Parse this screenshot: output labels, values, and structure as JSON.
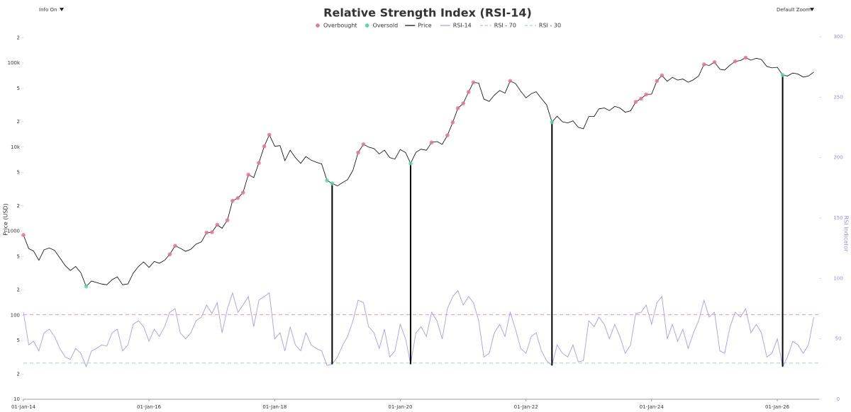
{
  "controls": {
    "left": "Info On",
    "right": "Default Zoom"
  },
  "chart_data": {
    "type": "line",
    "title": "Relative Strength Index (RSI-14)",
    "y_label": "Price (USD)",
    "y2_label": "RSI Indicator",
    "legend": "top",
    "log_y": true,
    "xlim": [
      "2014-01-01",
      "2026-09-01"
    ],
    "xticks": [
      {
        "value": "2014-01-01",
        "label": "01-Jan-14"
      },
      {
        "value": "2016-01-01",
        "label": "01-Jan-16"
      },
      {
        "value": "2018-01-01",
        "label": "01-Jan-18"
      },
      {
        "value": "2020-01-01",
        "label": "01-Jan-20"
      },
      {
        "value": "2022-01-01",
        "label": "01-Jan-22"
      },
      {
        "value": "2024-01-01",
        "label": "01-Jan-24"
      },
      {
        "value": "2026-01-01",
        "label": "01-Jan-26"
      }
    ],
    "ylim": [
      10,
      205000
    ],
    "yticks": [
      10,
      {
        "value": 20,
        "label": "2"
      },
      {
        "value": 50,
        "label": "5"
      },
      100,
      {
        "value": 200,
        "label": "2"
      },
      {
        "value": 500,
        "label": "5"
      },
      1000,
      {
        "value": 2000,
        "label": "2"
      },
      {
        "value": 5000,
        "label": "5"
      },
      {
        "value": 10000,
        "label": "10k"
      },
      {
        "value": 20000,
        "label": "2"
      },
      {
        "value": 50000,
        "label": "5"
      },
      {
        "value": 100000,
        "label": "100k"
      },
      {
        "value": 200000,
        "label": "2"
      }
    ],
    "y2lim": [
      0,
      300
    ],
    "y2ticks": [
      0,
      50,
      100,
      150,
      200,
      250,
      300
    ],
    "signals": [
      {
        "name": "Overbought",
        "color": "#e0789c"
      },
      {
        "name": "Oversold",
        "color": "#5fd6a9"
      }
    ],
    "thresholds": [
      {
        "name": "RSI - 70",
        "value": 70,
        "color": "#f2a6bf"
      },
      {
        "name": "RSI - 30",
        "value": 30,
        "color": "#a6dcc6"
      }
    ],
    "drop_lines": [
      "2018-12-01",
      "2020-03-01",
      "2022-06-01",
      "2026-02-01"
    ],
    "x": [
      "2014-01-01",
      "2014-02-01",
      "2014-03-01",
      "2014-04-01",
      "2014-05-01",
      "2014-06-01",
      "2014-07-01",
      "2014-08-01",
      "2014-09-01",
      "2014-10-01",
      "2014-11-01",
      "2014-12-01",
      "2015-01-01",
      "2015-02-01",
      "2015-03-01",
      "2015-04-01",
      "2015-05-01",
      "2015-06-01",
      "2015-07-01",
      "2015-08-01",
      "2015-09-01",
      "2015-10-01",
      "2015-11-01",
      "2015-12-01",
      "2016-01-01",
      "2016-02-01",
      "2016-03-01",
      "2016-04-01",
      "2016-05-01",
      "2016-06-01",
      "2016-07-01",
      "2016-08-01",
      "2016-09-01",
      "2016-10-01",
      "2016-11-01",
      "2016-12-01",
      "2017-01-01",
      "2017-02-01",
      "2017-03-01",
      "2017-04-01",
      "2017-05-01",
      "2017-06-01",
      "2017-07-01",
      "2017-08-01",
      "2017-09-01",
      "2017-10-01",
      "2017-11-01",
      "2017-12-01",
      "2018-01-01",
      "2018-02-01",
      "2018-03-01",
      "2018-04-01",
      "2018-05-01",
      "2018-06-01",
      "2018-07-01",
      "2018-08-01",
      "2018-09-01",
      "2018-10-01",
      "2018-11-01",
      "2018-12-01",
      "2019-01-01",
      "2019-02-01",
      "2019-03-01",
      "2019-04-01",
      "2019-05-01",
      "2019-06-01",
      "2019-07-01",
      "2019-08-01",
      "2019-09-01",
      "2019-10-01",
      "2019-11-01",
      "2019-12-01",
      "2020-01-01",
      "2020-02-01",
      "2020-03-01",
      "2020-04-01",
      "2020-05-01",
      "2020-06-01",
      "2020-07-01",
      "2020-08-01",
      "2020-09-01",
      "2020-10-01",
      "2020-11-01",
      "2020-12-01",
      "2021-01-01",
      "2021-02-01",
      "2021-03-01",
      "2021-04-01",
      "2021-05-01",
      "2021-06-01",
      "2021-07-01",
      "2021-08-01",
      "2021-09-01",
      "2021-10-01",
      "2021-11-01",
      "2021-12-01",
      "2022-01-01",
      "2022-02-01",
      "2022-03-01",
      "2022-04-01",
      "2022-05-01",
      "2022-06-01",
      "2022-07-01",
      "2022-08-01",
      "2022-09-01",
      "2022-10-01",
      "2022-11-01",
      "2022-12-01",
      "2023-01-01",
      "2023-02-01",
      "2023-03-01",
      "2023-04-01",
      "2023-05-01",
      "2023-06-01",
      "2023-07-01",
      "2023-08-01",
      "2023-09-01",
      "2023-10-01",
      "2023-11-01",
      "2023-12-01",
      "2024-01-01",
      "2024-02-01",
      "2024-03-01",
      "2024-04-01",
      "2024-05-01",
      "2024-06-01",
      "2024-07-01",
      "2024-08-01",
      "2024-09-01",
      "2024-10-01",
      "2024-11-01",
      "2024-12-01",
      "2025-01-01",
      "2025-02-01",
      "2025-03-01",
      "2025-04-01",
      "2025-05-01",
      "2025-06-01",
      "2025-07-01",
      "2025-08-01",
      "2025-09-01",
      "2025-10-01",
      "2025-11-01",
      "2025-12-01",
      "2026-01-01",
      "2026-02-01",
      "2026-03-01",
      "2026-04-01",
      "2026-05-01",
      "2026-06-01",
      "2026-07-01",
      "2026-08-01"
    ],
    "series": [
      {
        "name": "Price",
        "color": "#000000",
        "values": [
          900,
          620,
          580,
          450,
          600,
          630,
          590,
          480,
          390,
          340,
          380,
          320,
          220,
          255,
          245,
          235,
          230,
          265,
          285,
          230,
          236,
          315,
          380,
          430,
          370,
          435,
          415,
          450,
          530,
          670,
          625,
          575,
          610,
          700,
          745,
          960,
          970,
          1190,
          1080,
          1350,
          2300,
          2480,
          2875,
          4700,
          4340,
          6470,
          10200,
          14000,
          10200,
          10400,
          6900,
          9200,
          7500,
          6400,
          7700,
          7000,
          6600,
          6300,
          4000,
          3700,
          3450,
          3800,
          4100,
          5300,
          8600,
          10800,
          10000,
          9600,
          8300,
          9200,
          7500,
          7200,
          9350,
          8600,
          6400,
          8650,
          9450,
          9150,
          11350,
          11650,
          10800,
          13800,
          19700,
          29000,
          33100,
          45200,
          58800,
          57700,
          37300,
          35000,
          41500,
          47100,
          43800,
          61300,
          57000,
          46300,
          38500,
          43200,
          45500,
          37700,
          31800,
          19800,
          23300,
          20000,
          19400,
          20500,
          17200,
          16500,
          23100,
          23100,
          28500,
          29200,
          27200,
          30500,
          29200,
          26000,
          27000,
          34500,
          37700,
          42300,
          42600,
          61200,
          71300,
          60600,
          67500,
          62700,
          64600,
          59000,
          63300,
          70200,
          96400,
          93400,
          102400,
          84400,
          82500,
          94200,
          104600,
          107100,
          115800,
          108200,
          114000,
          110000,
          91000,
          87500,
          89000,
          72000,
          70000,
          76000,
          74000,
          68000,
          70000,
          78000
        ]
      },
      {
        "name": "RSI-14",
        "color": "#a99be8",
        "axis": "y2",
        "values": [
          72,
          45,
          48,
          40,
          55,
          58,
          52,
          42,
          35,
          33,
          42,
          38,
          27,
          40,
          42,
          45,
          44,
          55,
          58,
          40,
          45,
          62,
          65,
          60,
          48,
          58,
          52,
          60,
          72,
          75,
          55,
          50,
          55,
          65,
          68,
          78,
          71,
          80,
          55,
          75,
          88,
          72,
          78,
          85,
          60,
          82,
          85,
          88,
          50,
          55,
          40,
          60,
          45,
          40,
          55,
          45,
          42,
          40,
          28,
          29,
          35,
          45,
          52,
          65,
          82,
          80,
          60,
          55,
          42,
          58,
          35,
          40,
          62,
          50,
          29,
          55,
          60,
          52,
          72,
          65,
          50,
          75,
          85,
          90,
          78,
          85,
          80,
          65,
          35,
          38,
          55,
          62,
          52,
          72,
          58,
          42,
          38,
          52,
          55,
          40,
          32,
          28,
          45,
          38,
          35,
          45,
          31,
          32,
          65,
          60,
          68,
          62,
          50,
          62,
          52,
          38,
          45,
          71,
          72,
          78,
          62,
          80,
          85,
          50,
          62,
          48,
          58,
          42,
          55,
          65,
          82,
          68,
          72,
          40,
          38,
          60,
          72,
          68,
          75,
          55,
          62,
          55,
          35,
          38,
          50,
          27,
          35,
          48,
          45,
          38,
          45,
          68
        ]
      }
    ]
  }
}
